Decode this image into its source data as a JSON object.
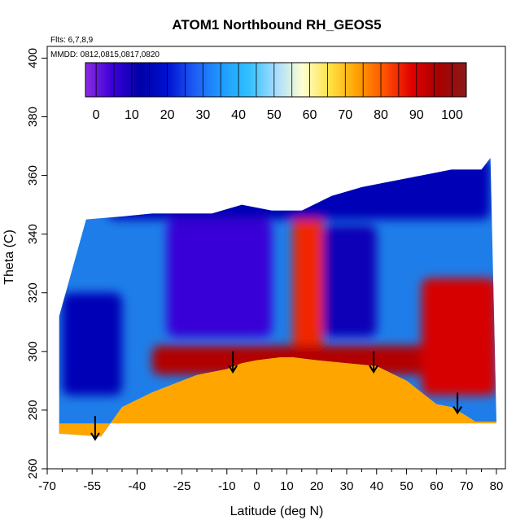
{
  "chart_data": {
    "type": "heatmap",
    "title": "ATOM1 Northbound RH_GEOS5",
    "annotations": [
      "Flts: 6,7,8,9",
      "MMDD: 0812,0815,0817,0820"
    ],
    "xlabel": "Latitude (deg N)",
    "ylabel": "Theta (C)",
    "xlim": [
      -70,
      83
    ],
    "ylim": [
      260,
      404
    ],
    "x_ticks": [
      -70,
      -55,
      -40,
      -25,
      -10,
      0,
      10,
      20,
      30,
      40,
      50,
      60,
      70,
      80
    ],
    "x_tick_labels": [
      "-70",
      "-55",
      "-40",
      "-25",
      "-10",
      "0",
      "10",
      "20",
      "30",
      "40",
      "50",
      "60",
      "70",
      "80"
    ],
    "x_minor_ticks": [
      -65,
      -60,
      -50,
      -45,
      -35,
      -30,
      -20,
      -15,
      -5,
      5,
      15,
      25,
      35,
      45,
      55,
      65,
      75
    ],
    "y_ticks": [
      260,
      280,
      300,
      320,
      340,
      360,
      380,
      400
    ],
    "y_tick_labels": [
      "260",
      "280",
      "300",
      "320",
      "340",
      "360",
      "380",
      "400"
    ],
    "colorbar": {
      "min": -3,
      "max": 104,
      "ticks": [
        0,
        10,
        20,
        30,
        40,
        50,
        60,
        70,
        80,
        90,
        100
      ],
      "tick_labels": [
        "0",
        "10",
        "20",
        "30",
        "40",
        "50",
        "60",
        "70",
        "80",
        "90",
        "100"
      ],
      "colors": [
        "#8a2be2",
        "#3a00d8",
        "#0000a8",
        "#0010d0",
        "#1d5cf5",
        "#1e9bff",
        "#30c0ff",
        "#a8dcff",
        "#ffffd0",
        "#ffe040",
        "#ffa000",
        "#ff5000",
        "#e00000",
        "#a80000",
        "#8b1a1a"
      ]
    },
    "surface_boundary": {
      "x": [
        -66,
        -52,
        -45,
        -35,
        -20,
        -10,
        -5,
        0,
        8,
        12,
        20,
        30,
        40,
        50,
        60,
        65,
        70,
        73,
        80
      ],
      "y": [
        272,
        271,
        281,
        286,
        292,
        294,
        296,
        297,
        298,
        298,
        297,
        296,
        295,
        290,
        282,
        281,
        278,
        276,
        276
      ]
    },
    "top_boundary": {
      "x": [
        -66,
        -57,
        -45,
        -35,
        -25,
        -15,
        -5,
        5,
        15,
        25,
        35,
        45,
        55,
        65,
        70,
        75,
        78
      ],
      "y": [
        312,
        345,
        346,
        347,
        347,
        347,
        350,
        348,
        348,
        353,
        356,
        358,
        360,
        362,
        362,
        362,
        366
      ]
    },
    "tropopause_arrows": [
      {
        "x": -54,
        "y_top": 278,
        "y_tip": 270
      },
      {
        "x": -8,
        "y_top": 300,
        "y_tip": 293
      },
      {
        "x": 39,
        "y_top": 300,
        "y_tip": 293
      },
      {
        "x": 67,
        "y_top": 286,
        "y_tip": 279
      }
    ],
    "field_features": [
      {
        "desc": "dry core",
        "x": [
          -30,
          5
        ],
        "y": [
          305,
          345
        ],
        "value": 5
      },
      {
        "desc": "moist band",
        "x": [
          12,
          22
        ],
        "y": [
          300,
          348
        ],
        "value": 85
      },
      {
        "desc": "dry pocket",
        "x": [
          22,
          40
        ],
        "y": [
          305,
          343
        ],
        "value": 10
      },
      {
        "desc": "moist layer near surface",
        "x": [
          -35,
          75
        ],
        "y": [
          292,
          302
        ],
        "value": 95
      },
      {
        "desc": "southern dry region",
        "x": [
          -65,
          -45
        ],
        "y": [
          285,
          320
        ],
        "value": 15
      },
      {
        "desc": "northern moist cells",
        "x": [
          55,
          80
        ],
        "y": [
          285,
          325
        ],
        "value": 90
      },
      {
        "desc": "upper dry layer",
        "x": [
          -50,
          78
        ],
        "y": [
          345,
          366
        ],
        "value": 15
      }
    ]
  }
}
